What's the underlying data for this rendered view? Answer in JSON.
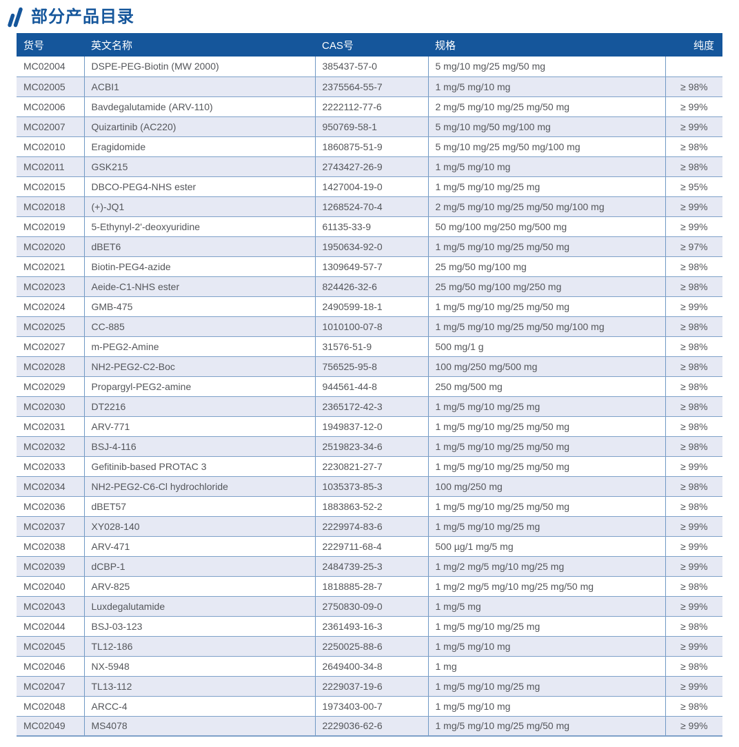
{
  "title": {
    "text": "部分产品目录"
  },
  "colors": {
    "brand_blue": "#15569B",
    "header_bg": "#15569B",
    "header_text": "#FFFFFF",
    "row_alt_bg": "#E6E9F4",
    "row_bg": "#FFFFFF",
    "grid_border": "#7DA0C8",
    "cell_text": "#54565A"
  },
  "table": {
    "columns": [
      {
        "key": "code",
        "label": "货号"
      },
      {
        "key": "name",
        "label": "英文名称"
      },
      {
        "key": "cas",
        "label": "CAS号"
      },
      {
        "key": "spec",
        "label": "规格"
      },
      {
        "key": "purity",
        "label": "纯度"
      }
    ],
    "rows": [
      {
        "code": "MC02004",
        "name": "DSPE-PEG-Biotin (MW 2000)",
        "cas": "385437-57-0",
        "spec": "5 mg/10 mg/25 mg/50 mg",
        "purity": ""
      },
      {
        "code": "MC02005",
        "name": "ACBI1",
        "cas": "2375564-55-7",
        "spec": "1 mg/5 mg/10 mg",
        "purity": "≥ 98%"
      },
      {
        "code": "MC02006",
        "name": "Bavdegalutamide (ARV-110)",
        "cas": "2222112-77-6",
        "spec": "2 mg/5 mg/10 mg/25 mg/50 mg",
        "purity": "≥ 99%"
      },
      {
        "code": "MC02007",
        "name": "Quizartinib (AC220)",
        "cas": "950769-58-1",
        "spec": "5 mg/10 mg/50 mg/100 mg",
        "purity": "≥ 99%"
      },
      {
        "code": "MC02010",
        "name": "Eragidomide",
        "cas": "1860875-51-9",
        "spec": "5 mg/10 mg/25 mg/50 mg/100 mg",
        "purity": "≥ 98%"
      },
      {
        "code": "MC02011",
        "name": "GSK215",
        "cas": "2743427-26-9",
        "spec": "1 mg/5 mg/10 mg",
        "purity": "≥ 98%"
      },
      {
        "code": "MC02015",
        "name": "DBCO-PEG4-NHS ester",
        "cas": "1427004-19-0",
        "spec": "1 mg/5 mg/10 mg/25 mg",
        "purity": "≥ 95%"
      },
      {
        "code": "MC02018",
        "name": "(+)-JQ1",
        "cas": "1268524-70-4",
        "spec": "2 mg/5 mg/10 mg/25 mg/50 mg/100 mg",
        "purity": "≥ 99%"
      },
      {
        "code": "MC02019",
        "name": "5-Ethynyl-2'-deoxyuridine",
        "cas": "61135-33-9",
        "spec": "50 mg/100 mg/250 mg/500 mg",
        "purity": "≥ 99%"
      },
      {
        "code": "MC02020",
        "name": "dBET6",
        "cas": "1950634-92-0",
        "spec": "1 mg/5 mg/10 mg/25 mg/50 mg",
        "purity": "≥ 97%"
      },
      {
        "code": "MC02021",
        "name": "Biotin-PEG4-azide",
        "cas": "1309649-57-7",
        "spec": "25 mg/50 mg/100 mg",
        "purity": "≥ 98%"
      },
      {
        "code": "MC02023",
        "name": "Aeide-C1-NHS ester",
        "cas": "824426-32-6",
        "spec": "25 mg/50 mg/100 mg/250 mg",
        "purity": "≥ 98%"
      },
      {
        "code": "MC02024",
        "name": "GMB-475",
        "cas": "2490599-18-1",
        "spec": "1 mg/5 mg/10 mg/25 mg/50 mg",
        "purity": "≥ 99%"
      },
      {
        "code": "MC02025",
        "name": "CC-885",
        "cas": "1010100-07-8",
        "spec": "1 mg/5 mg/10 mg/25 mg/50 mg/100 mg",
        "purity": "≥ 98%"
      },
      {
        "code": "MC02027",
        "name": "m-PEG2-Amine",
        "cas": "31576-51-9",
        "spec": "500 mg/1 g",
        "purity": "≥ 98%"
      },
      {
        "code": "MC02028",
        "name": "NH2-PEG2-C2-Boc",
        "cas": "756525-95-8",
        "spec": "100 mg/250 mg/500 mg",
        "purity": "≥ 98%"
      },
      {
        "code": "MC02029",
        "name": "Propargyl-PEG2-amine",
        "cas": "944561-44-8",
        "spec": "250 mg/500 mg",
        "purity": "≥ 98%"
      },
      {
        "code": "MC02030",
        "name": "DT2216",
        "cas": "2365172-42-3",
        "spec": "1 mg/5 mg/10 mg/25 mg",
        "purity": "≥ 98%"
      },
      {
        "code": "MC02031",
        "name": "ARV-771",
        "cas": "1949837-12-0",
        "spec": "1 mg/5 mg/10 mg/25 mg/50 mg",
        "purity": "≥ 98%"
      },
      {
        "code": "MC02032",
        "name": "BSJ-4-116",
        "cas": "2519823-34-6",
        "spec": "1 mg/5 mg/10 mg/25 mg/50 mg",
        "purity": "≥ 98%"
      },
      {
        "code": "MC02033",
        "name": "Gefitinib-based PROTAC 3",
        "cas": "2230821-27-7",
        "spec": "1 mg/5 mg/10 mg/25 mg/50 mg",
        "purity": "≥ 99%"
      },
      {
        "code": "MC02034",
        "name": "NH2-PEG2-C6-Cl hydrochloride",
        "cas": "1035373-85-3",
        "spec": "100 mg/250 mg",
        "purity": "≥ 98%"
      },
      {
        "code": "MC02036",
        "name": "dBET57",
        "cas": "1883863-52-2",
        "spec": "1 mg/5 mg/10 mg/25 mg/50 mg",
        "purity": "≥ 98%"
      },
      {
        "code": "MC02037",
        "name": "XY028-140",
        "cas": "2229974-83-6",
        "spec": "1 mg/5 mg/10 mg/25 mg",
        "purity": "≥ 99%"
      },
      {
        "code": "MC02038",
        "name": "ARV-471",
        "cas": "2229711-68-4",
        "spec": "500 µg/1 mg/5 mg",
        "purity": "≥ 99%"
      },
      {
        "code": "MC02039",
        "name": "dCBP-1",
        "cas": "2484739-25-3",
        "spec": "1 mg/2 mg/5 mg/10 mg/25 mg",
        "purity": "≥ 99%"
      },
      {
        "code": "MC02040",
        "name": "ARV-825",
        "cas": "1818885-28-7",
        "spec": "1 mg/2 mg/5 mg/10 mg/25 mg/50 mg",
        "purity": "≥ 98%"
      },
      {
        "code": "MC02043",
        "name": "Luxdegalutamide",
        "cas": "2750830-09-0",
        "spec": "1 mg/5 mg",
        "purity": "≥ 99%"
      },
      {
        "code": "MC02044",
        "name": "BSJ-03-123",
        "cas": "2361493-16-3",
        "spec": "1 mg/5 mg/10 mg/25 mg",
        "purity": "≥ 98%"
      },
      {
        "code": "MC02045",
        "name": "TL12-186",
        "cas": "2250025-88-6",
        "spec": "1 mg/5 mg/10 mg",
        "purity": "≥ 99%"
      },
      {
        "code": "MC02046",
        "name": "NX-5948",
        "cas": "2649400-34-8",
        "spec": "1 mg",
        "purity": "≥ 98%"
      },
      {
        "code": "MC02047",
        "name": "TL13-112",
        "cas": "2229037-19-6",
        "spec": "1 mg/5 mg/10 mg/25 mg",
        "purity": "≥ 99%"
      },
      {
        "code": "MC02048",
        "name": "ARCC-4",
        "cas": "1973403-00-7",
        "spec": "1 mg/5 mg/10 mg",
        "purity": "≥ 98%"
      },
      {
        "code": "MC02049",
        "name": "MS4078",
        "cas": "2229036-62-6",
        "spec": "1 mg/5 mg/10 mg/25 mg/50 mg",
        "purity": "≥ 99%"
      }
    ]
  }
}
